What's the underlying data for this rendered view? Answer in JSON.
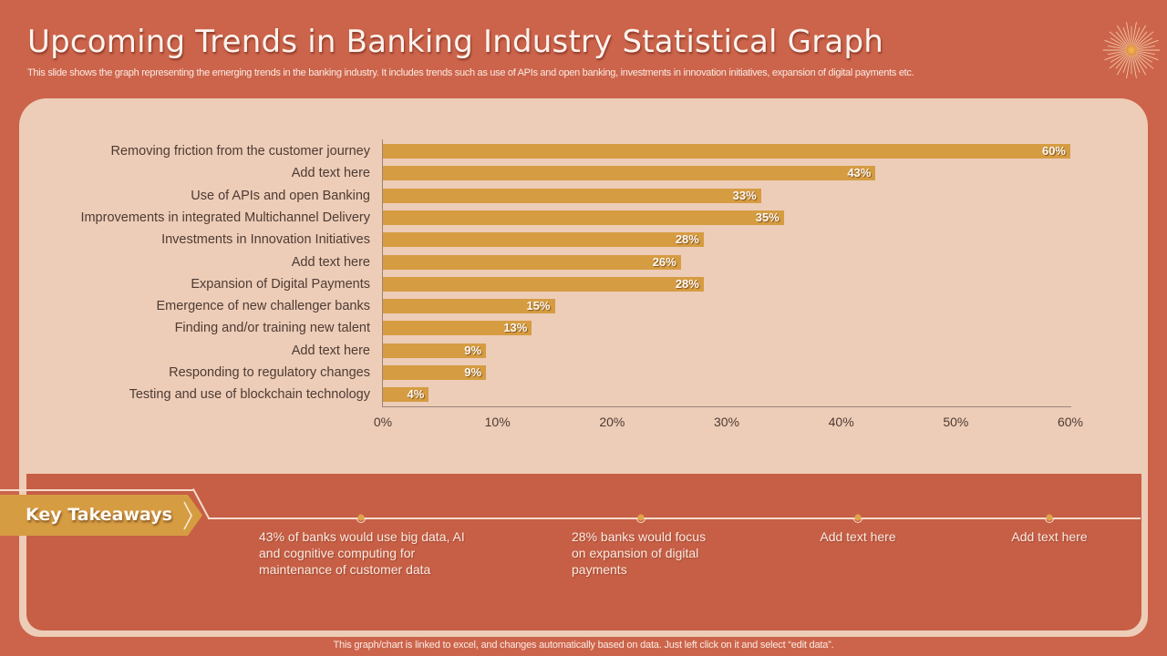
{
  "header": {
    "title": "Upcoming Trends in Banking Industry Statistical Graph",
    "subtitle": "This slide shows the graph representing the emerging trends in the banking industry. It includes trends such as use of APIs and open banking, investments in innovation initiatives, expansion of digital payments etc.",
    "icon": "sun-burst-icon"
  },
  "colors": {
    "background": "#cc644b",
    "card": "#edcdb8",
    "bar": "#d69c42",
    "takeaway_box": "#c65f45",
    "text_light": "#fbeae2",
    "text_dark": "#4e3b33"
  },
  "chart_data": {
    "type": "bar",
    "orientation": "horizontal",
    "title": "",
    "xlabel": "",
    "ylabel": "",
    "xlim": [
      0,
      60
    ],
    "x_ticks": [
      "0%",
      "10%",
      "20%",
      "30%",
      "40%",
      "50%",
      "60%"
    ],
    "grid": false,
    "legend": null,
    "categories": [
      "Removing friction from the customer journey",
      "Add text here",
      "Use of APIs and open Banking",
      "Improvements in integrated Multichannel Delivery",
      "Investments in Innovation Initiatives",
      "Add text here",
      "Expansion of Digital Payments",
      "Emergence of new challenger banks",
      "Finding and/or training new talent",
      "Add text here",
      "Responding to regulatory changes",
      "Testing and use of blockchain technology"
    ],
    "values": [
      60,
      43,
      33,
      35,
      28,
      26,
      28,
      15,
      13,
      9,
      9,
      4
    ],
    "value_labels": [
      "60%",
      "43%",
      "33%",
      "35%",
      "28%",
      "26%",
      "28%",
      "15%",
      "13%",
      "9%",
      "9%",
      "4%"
    ],
    "unit": "%"
  },
  "takeaways": {
    "label": "Key Takeaways",
    "items": [
      {
        "text": "43% of banks would use big data, AI and cognitive computing for maintenance of customer data"
      },
      {
        "text": "28% banks would focus on expansion of digital payments"
      },
      {
        "text": "Add text here"
      },
      {
        "text": "Add text here"
      }
    ]
  },
  "footer": {
    "note": "This graph/chart is linked to excel, and changes automatically based on data. Just left click on it and select “edit data”."
  }
}
